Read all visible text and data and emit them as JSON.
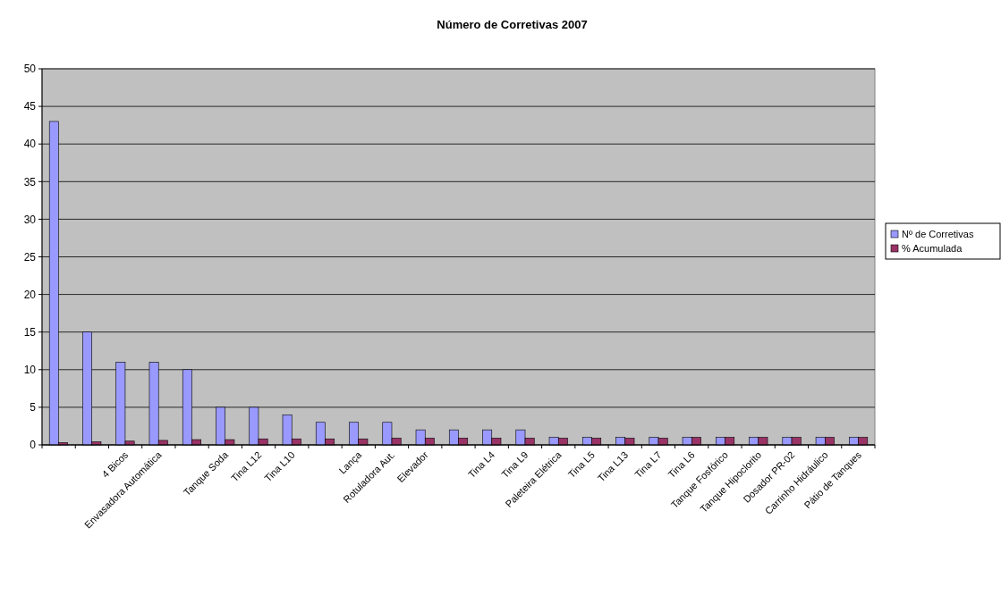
{
  "chart_data": {
    "type": "bar",
    "title": "Número de Corretivas 2007",
    "categories": [
      null,
      null,
      "4 Bicos",
      "Envasadora Automática",
      null,
      "Tanque Soda",
      "Tina L12",
      "Tina L10",
      null,
      "Lança",
      "Rotuladora Aut.",
      "Elevador",
      null,
      "Tina L4",
      "Tina L9",
      "Paleteira Elétrica",
      "Tina L5",
      "Tina L13",
      "Tina L7",
      "Tina L6",
      "Tanque Fosfórico",
      "Tanque Hipoclorito",
      "Dosador PR-02",
      "Carrinho Hidráulico",
      "Pátio de Tanques"
    ],
    "series": [
      {
        "name": "Nº de Corretivas",
        "color": "#9999ff",
        "values": [
          43,
          15,
          11,
          11,
          10,
          5,
          5,
          4,
          3,
          3,
          3,
          2,
          2,
          2,
          2,
          1,
          1,
          1,
          1,
          1,
          1,
          1,
          1,
          1,
          1
        ]
      },
      {
        "name": "% Acumulada",
        "color": "#993366",
        "values": [
          0.3,
          0.4,
          0.5,
          0.6,
          0.7,
          0.7,
          0.8,
          0.8,
          0.8,
          0.8,
          0.9,
          0.9,
          0.9,
          0.9,
          0.9,
          0.9,
          0.9,
          0.9,
          0.9,
          1,
          1,
          1,
          1,
          1,
          1
        ]
      }
    ],
    "ylim": [
      0,
      50
    ],
    "yticks": [
      0,
      5,
      10,
      15,
      20,
      25,
      30,
      35,
      40,
      45,
      50
    ],
    "grid": "y",
    "legend": "right"
  }
}
